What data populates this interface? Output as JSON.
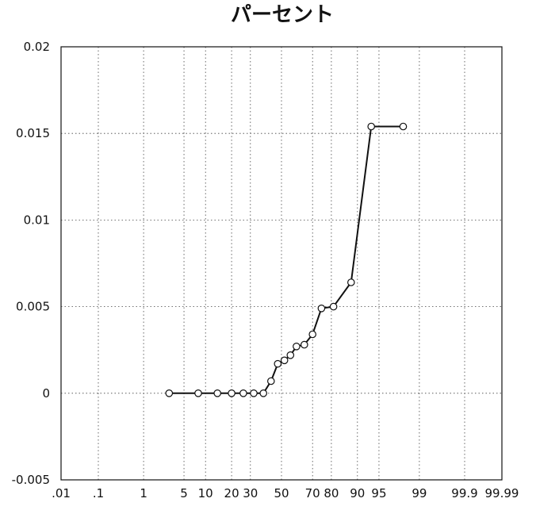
{
  "chart_data": {
    "type": "line",
    "title": "パーセント",
    "x_scale": "probability",
    "y_scale": "linear",
    "ylim": [
      -0.005,
      0.02
    ],
    "xlim": [
      0.01,
      99.99
    ],
    "grid": true,
    "x_ticks": [
      {
        "value": 0.01,
        "label": ".01"
      },
      {
        "value": 0.1,
        "label": ".1"
      },
      {
        "value": 1,
        "label": "1"
      },
      {
        "value": 5,
        "label": "5"
      },
      {
        "value": 10,
        "label": "10"
      },
      {
        "value": 20,
        "label": "20"
      },
      {
        "value": 30,
        "label": "30"
      },
      {
        "value": 50,
        "label": "50"
      },
      {
        "value": 70,
        "label": "70"
      },
      {
        "value": 80,
        "label": "80"
      },
      {
        "value": 90,
        "label": "90"
      },
      {
        "value": 95,
        "label": "95"
      },
      {
        "value": 99,
        "label": "99"
      },
      {
        "value": 99.9,
        "label": "99.9"
      },
      {
        "value": 99.99,
        "label": "99.99"
      }
    ],
    "y_ticks": [
      {
        "value": -0.005,
        "label": "-0.005"
      },
      {
        "value": 0,
        "label": "0"
      },
      {
        "value": 0.005,
        "label": "0.005"
      },
      {
        "value": 0.01,
        "label": "0.01"
      },
      {
        "value": 0.015,
        "label": "0.015"
      },
      {
        "value": 0.02,
        "label": "0.02"
      }
    ],
    "series": [
      {
        "x": [
          2.9,
          8,
          14,
          20,
          26,
          32,
          38,
          43,
          47.5,
          52,
          56,
          60,
          65,
          70,
          75,
          81,
          88,
          93.5,
          98
        ],
        "y": [
          0,
          0,
          0,
          0,
          0,
          0,
          0,
          0.0007,
          0.0017,
          0.0019,
          0.0022,
          0.0027,
          0.0028,
          0.0034,
          0.0049,
          0.005,
          0.0064,
          0.0154,
          0.0154
        ]
      }
    ]
  }
}
